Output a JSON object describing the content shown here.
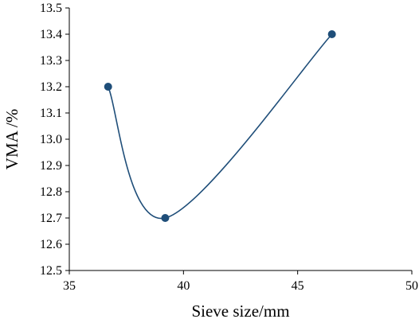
{
  "chart_data": {
    "type": "scatter",
    "smoothed_line": true,
    "xlabel": "Sieve size/mm",
    "ylabel": "VMA /%",
    "xlim": [
      35,
      50
    ],
    "ylim": [
      12.5,
      13.5
    ],
    "x_ticks": [
      "35",
      "40",
      "45",
      "50"
    ],
    "x_tick_values": [
      35,
      40,
      45,
      50
    ],
    "y_ticks": [
      "12.5",
      "12.6",
      "12.7",
      "12.8",
      "12.9",
      "13.0",
      "13.1",
      "13.2",
      "13.3",
      "13.4",
      "13.5"
    ],
    "y_tick_values": [
      12.5,
      12.6,
      12.7,
      12.8,
      12.9,
      13.0,
      13.1,
      13.2,
      13.3,
      13.4,
      13.5
    ],
    "grid": false,
    "series": [
      {
        "x": [
          36.7,
          39.2,
          46.5
        ],
        "y": [
          13.2,
          12.7,
          13.4
        ],
        "color": "#1f4e79",
        "marker_color": "#1f4e79"
      }
    ]
  }
}
